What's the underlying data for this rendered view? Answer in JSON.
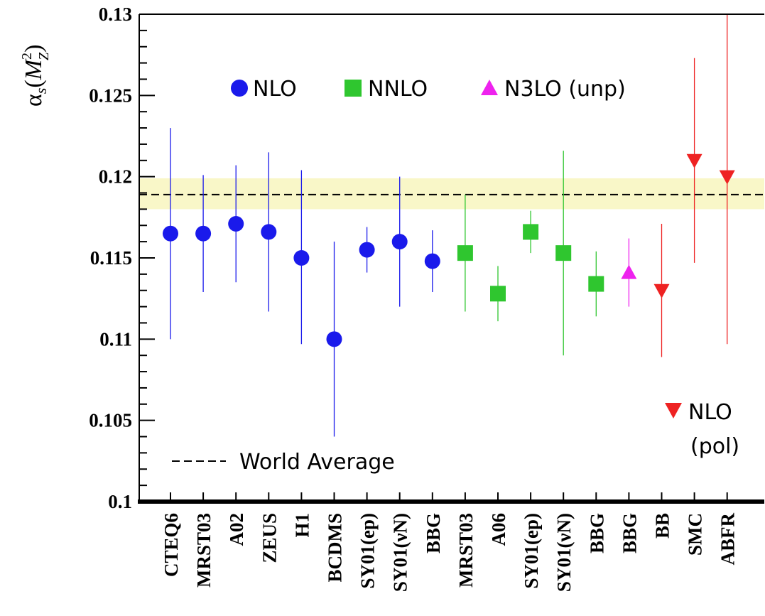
{
  "chart_data": {
    "type": "scatter",
    "ylim": [
      0.1,
      0.13
    ],
    "yticks": [
      0.1,
      0.105,
      0.11,
      0.115,
      0.12,
      0.125,
      0.13
    ],
    "ytick_labels": [
      "0.1",
      "0.105",
      "0.11",
      "0.115",
      "0.12",
      "0.125",
      "0.13"
    ],
    "ylabel": {
      "main": "α",
      "sub": "s",
      "paren_open": "(",
      "M": "M",
      "sup": "2",
      "zsub": "Z",
      "paren_close": ")"
    },
    "categories": [
      "CTEQ6",
      "MRST03",
      "A02",
      "ZEUS",
      "H1",
      "BCDMS",
      "SY01(ep)",
      "SY01(νN)",
      "BBG",
      "MRST03",
      "A06",
      "SY01(ep)",
      "SY01(νN)",
      "BBG",
      "BBG",
      "BB",
      "SMC",
      "ABFR"
    ],
    "world_average": {
      "value": 0.1189,
      "band": [
        0.118,
        0.1199
      ],
      "label": "World Average",
      "color": "#f9f7c8"
    },
    "series": [
      {
        "name": "NLO",
        "marker": "circle",
        "color": "#1a1aeb",
        "points": [
          {
            "x": 0,
            "y": 0.1165,
            "lo": 0.11,
            "hi": 0.123
          },
          {
            "x": 1,
            "y": 0.1165,
            "lo": 0.1129,
            "hi": 0.1201
          },
          {
            "x": 2,
            "y": 0.1171,
            "lo": 0.1135,
            "hi": 0.1207
          },
          {
            "x": 3,
            "y": 0.1166,
            "lo": 0.1117,
            "hi": 0.1215
          },
          {
            "x": 4,
            "y": 0.115,
            "lo": 0.1097,
            "hi": 0.1204
          },
          {
            "x": 5,
            "y": 0.11,
            "lo": 0.104,
            "hi": 0.116
          },
          {
            "x": 6,
            "y": 0.1155,
            "lo": 0.1141,
            "hi": 0.1169
          },
          {
            "x": 7,
            "y": 0.116,
            "lo": 0.112,
            "hi": 0.12
          },
          {
            "x": 8,
            "y": 0.1148,
            "lo": 0.1129,
            "hi": 0.1167
          }
        ]
      },
      {
        "name": "NNLO",
        "marker": "square",
        "color": "#2fc62f",
        "points": [
          {
            "x": 9,
            "y": 0.1153,
            "lo": 0.1117,
            "hi": 0.1189
          },
          {
            "x": 10,
            "y": 0.1128,
            "lo": 0.1111,
            "hi": 0.1145
          },
          {
            "x": 11,
            "y": 0.1166,
            "lo": 0.1153,
            "hi": 0.1179
          },
          {
            "x": 12,
            "y": 0.1153,
            "lo": 0.109,
            "hi": 0.1216
          },
          {
            "x": 13,
            "y": 0.1134,
            "lo": 0.1114,
            "hi": 0.1154
          }
        ]
      },
      {
        "name": "N3LO (unp)",
        "marker": "triangle-up",
        "color": "#ee22ee",
        "points": [
          {
            "x": 14,
            "y": 0.1141,
            "lo": 0.112,
            "hi": 0.1162
          }
        ]
      },
      {
        "name": "NLO",
        "name_line2": "(pol)",
        "marker": "triangle-down",
        "color": "#ee2222",
        "points": [
          {
            "x": 15,
            "y": 0.113,
            "lo": 0.1089,
            "hi": 0.1171
          },
          {
            "x": 16,
            "y": 0.121,
            "lo": 0.1147,
            "hi": 0.1273
          },
          {
            "x": 17,
            "y": 0.12,
            "lo": 0.1097,
            "hi": 0.13
          }
        ]
      }
    ]
  }
}
